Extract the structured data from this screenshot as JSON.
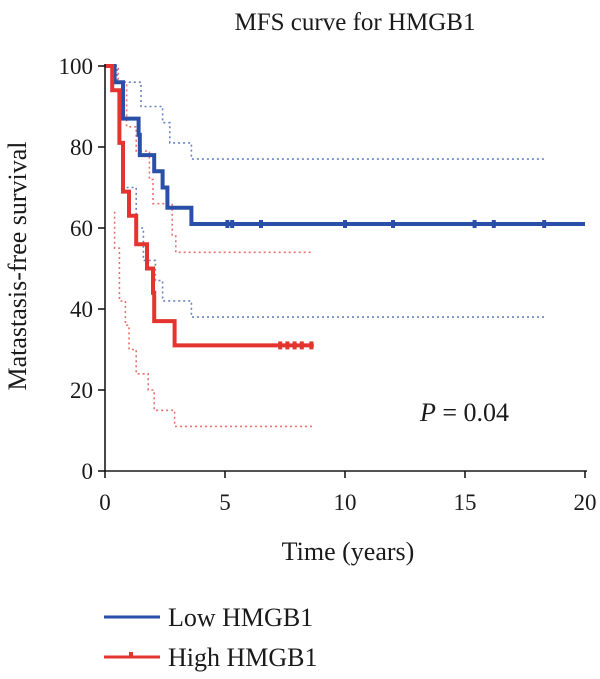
{
  "chart_data": {
    "type": "line",
    "title": "MFS curve for HMGB1",
    "xlabel": "Time (years)",
    "ylabel": "Matastasis-free survival",
    "xlim": [
      0,
      20
    ],
    "ylim": [
      0,
      100
    ],
    "xticks": [
      0,
      5,
      10,
      15,
      20
    ],
    "yticks": [
      0,
      20,
      40,
      60,
      80,
      100
    ],
    "legend_position": "bottom-left",
    "annotation": {
      "label": "P",
      "text": " = 0.04"
    },
    "series": [
      {
        "name": "Low HMGB1",
        "color": "#2a4fa8",
        "steps": [
          [
            0,
            100
          ],
          [
            0.4,
            100
          ],
          [
            0.4,
            96
          ],
          [
            0.75,
            96
          ],
          [
            0.75,
            87
          ],
          [
            1.4,
            87
          ],
          [
            1.4,
            83
          ],
          [
            1.45,
            83
          ],
          [
            1.45,
            78
          ],
          [
            2.05,
            78
          ],
          [
            2.05,
            74
          ],
          [
            2.4,
            74
          ],
          [
            2.4,
            70
          ],
          [
            2.6,
            70
          ],
          [
            2.6,
            65
          ],
          [
            3.6,
            65
          ],
          [
            3.6,
            61
          ],
          [
            20,
            61
          ]
        ],
        "censored": [
          [
            5.1,
            61
          ],
          [
            5.3,
            61
          ],
          [
            6.5,
            61
          ],
          [
            10,
            61
          ],
          [
            12,
            61
          ],
          [
            15.4,
            61
          ],
          [
            16.2,
            61
          ],
          [
            18.3,
            61
          ]
        ],
        "ci_upper": [
          [
            0,
            100
          ],
          [
            0.5,
            100
          ],
          [
            0.5,
            96
          ],
          [
            1.5,
            96
          ],
          [
            1.5,
            90
          ],
          [
            2.4,
            90
          ],
          [
            2.4,
            86
          ],
          [
            2.7,
            86
          ],
          [
            2.7,
            81
          ],
          [
            3.6,
            81
          ],
          [
            3.6,
            77
          ],
          [
            18.3,
            77
          ]
        ],
        "ci_lower": [
          [
            0.7,
            75
          ],
          [
            0.7,
            70
          ],
          [
            1.3,
            70
          ],
          [
            1.3,
            60
          ],
          [
            1.6,
            60
          ],
          [
            1.6,
            52
          ],
          [
            2.1,
            52
          ],
          [
            2.1,
            47
          ],
          [
            2.4,
            47
          ],
          [
            2.4,
            42
          ],
          [
            3.6,
            42
          ],
          [
            3.6,
            38
          ],
          [
            18.3,
            38
          ]
        ]
      },
      {
        "name": "High HMGB1",
        "color": "#e3342f",
        "steps": [
          [
            0,
            100
          ],
          [
            0.3,
            100
          ],
          [
            0.3,
            94
          ],
          [
            0.6,
            94
          ],
          [
            0.6,
            81
          ],
          [
            0.75,
            81
          ],
          [
            0.75,
            69
          ],
          [
            1.0,
            69
          ],
          [
            1.0,
            63
          ],
          [
            1.3,
            63
          ],
          [
            1.3,
            56
          ],
          [
            1.75,
            56
          ],
          [
            1.75,
            50
          ],
          [
            2.0,
            50
          ],
          [
            2.0,
            44
          ],
          [
            2.05,
            44
          ],
          [
            2.05,
            37
          ],
          [
            2.9,
            37
          ],
          [
            2.9,
            31
          ],
          [
            8.7,
            31
          ]
        ],
        "censored": [
          [
            7.3,
            31
          ],
          [
            7.6,
            31
          ],
          [
            7.9,
            31
          ],
          [
            8.2,
            31
          ],
          [
            8.6,
            31
          ]
        ],
        "ci_upper": [
          [
            0,
            100
          ],
          [
            0.55,
            100
          ],
          [
            0.55,
            96
          ],
          [
            0.9,
            96
          ],
          [
            0.9,
            85
          ],
          [
            1.3,
            85
          ],
          [
            1.3,
            79
          ],
          [
            1.85,
            79
          ],
          [
            1.85,
            72
          ],
          [
            2.0,
            72
          ],
          [
            2.0,
            66
          ],
          [
            2.8,
            66
          ],
          [
            2.8,
            58
          ],
          [
            2.95,
            58
          ],
          [
            2.95,
            54
          ],
          [
            8.7,
            54
          ]
        ],
        "ci_lower": [
          [
            0.4,
            64
          ],
          [
            0.4,
            55
          ],
          [
            0.6,
            55
          ],
          [
            0.6,
            42
          ],
          [
            0.85,
            42
          ],
          [
            0.85,
            36
          ],
          [
            1.0,
            36
          ],
          [
            1.0,
            30
          ],
          [
            1.3,
            30
          ],
          [
            1.3,
            24
          ],
          [
            1.8,
            24
          ],
          [
            1.8,
            20
          ],
          [
            2.05,
            20
          ],
          [
            2.05,
            15
          ],
          [
            2.9,
            15
          ],
          [
            2.9,
            11
          ],
          [
            8.7,
            11
          ]
        ]
      }
    ]
  }
}
